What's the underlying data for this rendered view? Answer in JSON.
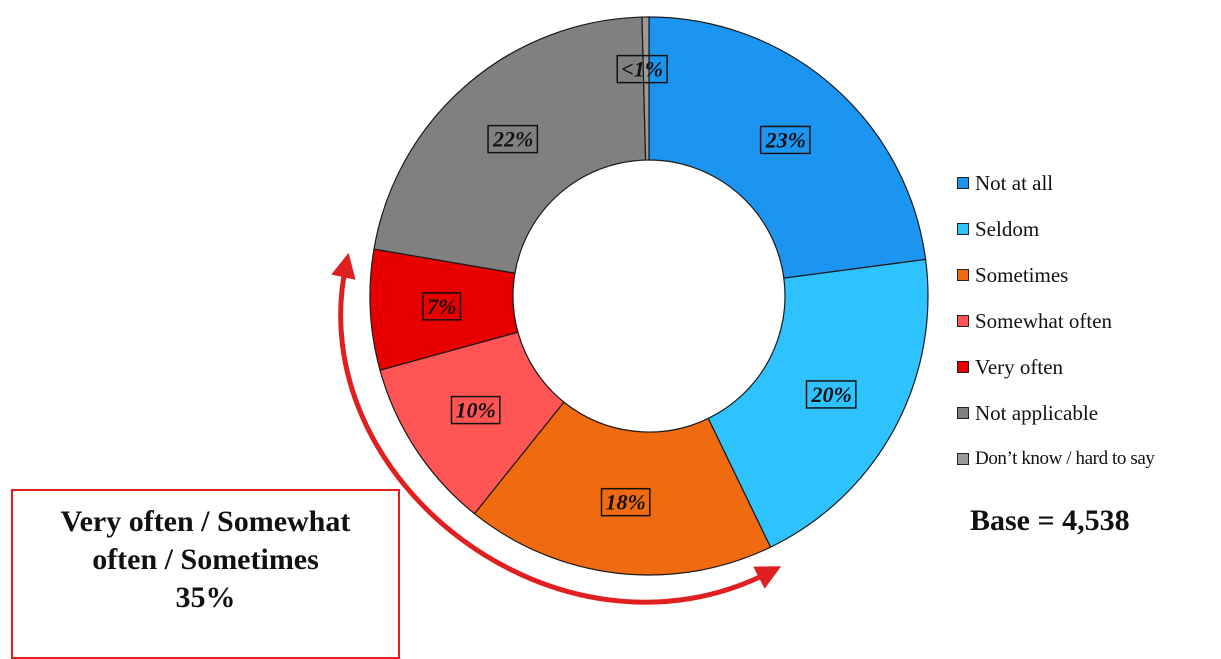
{
  "chart_data": {
    "type": "pie",
    "donut": true,
    "categories": [
      "Not at all",
      "Seldom",
      "Sometimes",
      "Somewhat often",
      "Very often",
      "Not applicable",
      "Don’t know / hard to say"
    ],
    "values": [
      23,
      20,
      18,
      10,
      7,
      22,
      0.4
    ],
    "value_labels": [
      "23%",
      "20%",
      "18%",
      "10%",
      "7%",
      "22%",
      "<1%"
    ],
    "colors": [
      "#1c95f0",
      "#2ec3ff",
      "#f06a10",
      "#ff5555",
      "#e80000",
      "#808080",
      "#9a9a9a"
    ],
    "legend_position": "right"
  },
  "legend": [
    {
      "label": "Not at all",
      "color": "#1c95f0"
    },
    {
      "label": "Seldom",
      "color": "#2ec3ff"
    },
    {
      "label": "Sometimes",
      "color": "#f06a10"
    },
    {
      "label": "Somewhat often",
      "color": "#ff5555"
    },
    {
      "label": "Very often",
      "color": "#e80000"
    },
    {
      "label": "Not applicable",
      "color": "#808080"
    },
    {
      "label": "Don’t know / hard to say",
      "color": "#9a9a9a"
    }
  ],
  "base_text": "Base = 4,538",
  "callout": {
    "line1": "Very often / Somewhat",
    "line2": "often / Sometimes",
    "value": "35%",
    "color": "#e02020"
  }
}
